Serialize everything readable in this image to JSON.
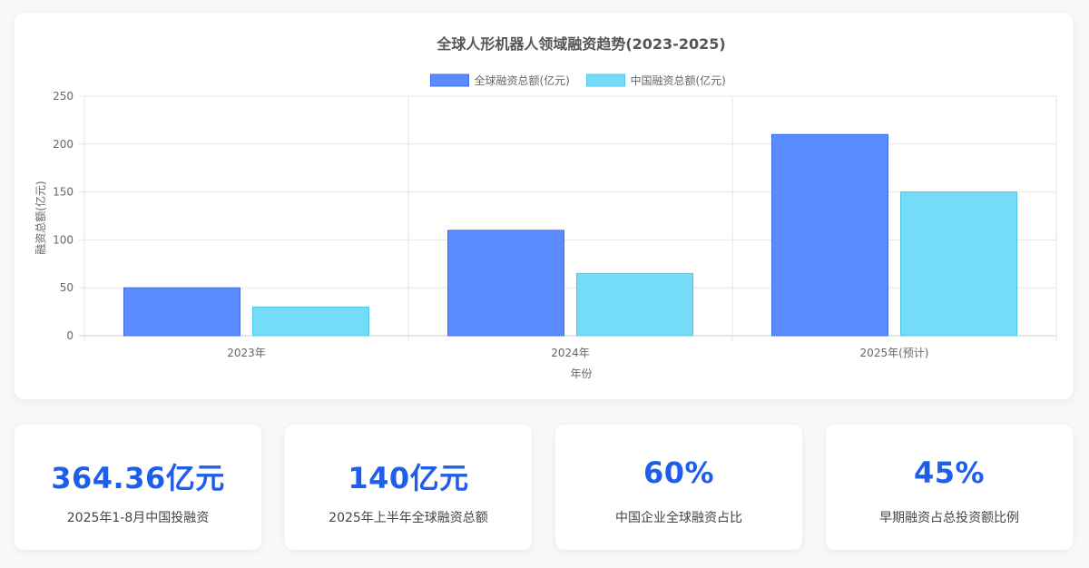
{
  "chart_data": {
    "type": "bar",
    "title": "全球人形机器人领域融资趋势(2023-2025)",
    "xlabel": "年份",
    "ylabel": "融资总额(亿元)",
    "categories": [
      "2023年",
      "2024年",
      "2025年(预计)"
    ],
    "series": [
      {
        "name": "全球融资总额(亿元)",
        "values": [
          50,
          110,
          210
        ],
        "color": "#5b8cff",
        "border": "#3f6fe8"
      },
      {
        "name": "中国融资总额(亿元)",
        "values": [
          30,
          65,
          150
        ],
        "color": "#74dcf7",
        "border": "#4cc7ea"
      }
    ],
    "ylim": [
      0,
      250
    ],
    "yticks": [
      0,
      50,
      100,
      150,
      200,
      250
    ],
    "grid": true,
    "legend": "top"
  },
  "stats": [
    {
      "value": "364.36亿元",
      "label": "2025年1-8月中国投融资"
    },
    {
      "value": "140亿元",
      "label": "2025年上半年全球融资总额"
    },
    {
      "value": "60%",
      "label": "中国企业全球融资占比"
    },
    {
      "value": "45%",
      "label": "早期融资占总投资额比例"
    }
  ]
}
